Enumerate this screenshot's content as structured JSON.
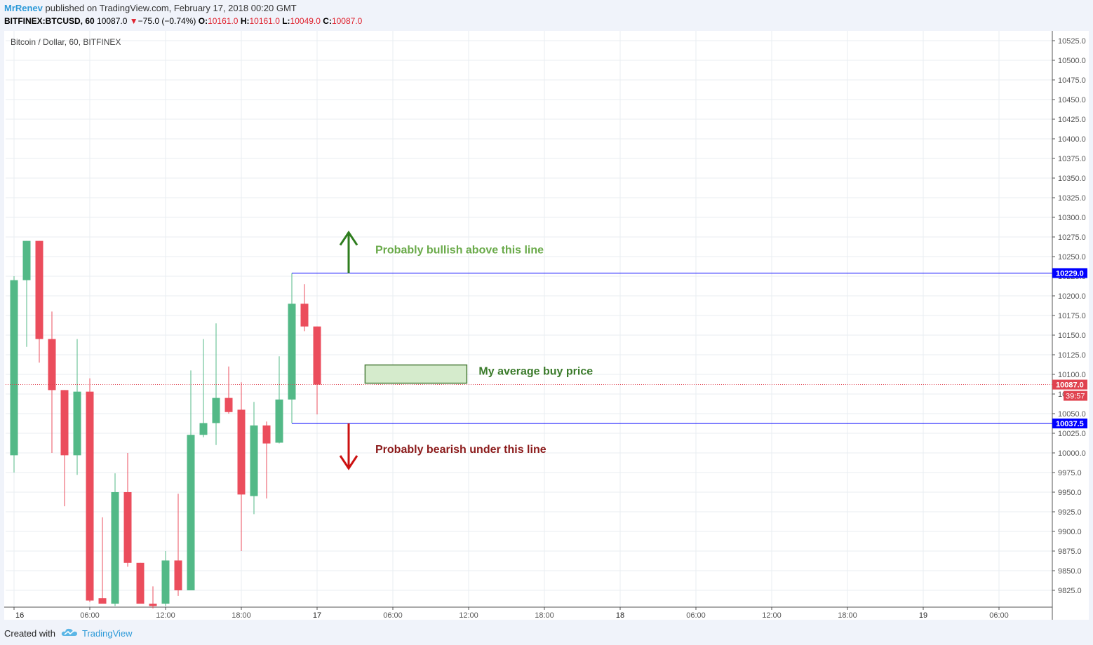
{
  "header": {
    "author": "MrRenev",
    "published": "published on TradingView.com, February 17, 2018 00:20 GMT",
    "symbol": "BITFINEX:BTCUSD, 60",
    "last": "10087.0",
    "change": "−75.0 (−0.74%)",
    "o_label": "O:",
    "o": "10161.0",
    "h_label": "H:",
    "h": "10161.0",
    "l_label": "L:",
    "l": "10049.0",
    "c_label": "C:",
    "c": "10087.0"
  },
  "chart_data": {
    "type": "candlestick",
    "title": "Bitcoin / Dollar, 60, BITFINEX",
    "x_ticks": [
      "16",
      "06:00",
      "12:00",
      "18:00",
      "17",
      "06:00",
      "12:00",
      "18:00",
      "18",
      "06:00",
      "12:00",
      "18:00",
      "19",
      "06:00"
    ],
    "y_ticks": [
      "10525.0",
      "10500.0",
      "10475.0",
      "10450.0",
      "10425.0",
      "10400.0",
      "10375.0",
      "10350.0",
      "10325.0",
      "10300.0",
      "10275.0",
      "10250.0",
      "10225.0",
      "10200.0",
      "10175.0",
      "10150.0",
      "10125.0",
      "10100.0",
      "10075.0",
      "10050.0",
      "10025.0",
      "10000.0",
      "9975.0",
      "9950.0",
      "9925.0",
      "9900.0",
      "9875.0",
      "9850.0",
      "9825.0"
    ],
    "ylim": [
      9810,
      10535
    ],
    "candles": [
      {
        "o": 9997,
        "h": 10225,
        "l": 9975,
        "c": 10220
      },
      {
        "o": 10220,
        "h": 10270,
        "l": 10135,
        "c": 10270
      },
      {
        "o": 10270,
        "h": 10270,
        "l": 10115,
        "c": 10145
      },
      {
        "o": 10145,
        "h": 10180,
        "l": 10000,
        "c": 10080
      },
      {
        "o": 10080,
        "h": 10080,
        "l": 9932,
        "c": 9997
      },
      {
        "o": 9997,
        "h": 10145,
        "l": 9972,
        "c": 10078
      },
      {
        "o": 10078,
        "h": 10095,
        "l": 9810,
        "c": 9812
      },
      {
        "o": 9815,
        "h": 9918,
        "l": 9810,
        "c": 9808
      },
      {
        "o": 9808,
        "h": 9974,
        "l": 9805,
        "c": 9950
      },
      {
        "o": 9950,
        "h": 10000,
        "l": 9855,
        "c": 9860
      },
      {
        "o": 9860,
        "h": 9860,
        "l": 9808,
        "c": 9808
      },
      {
        "o": 9808,
        "h": 9830,
        "l": 9802,
        "c": 9805
      },
      {
        "o": 9808,
        "h": 9875,
        "l": 9805,
        "c": 9863
      },
      {
        "o": 9863,
        "h": 9948,
        "l": 9818,
        "c": 9825
      },
      {
        "o": 9825,
        "h": 10105,
        "l": 9825,
        "c": 10023
      },
      {
        "o": 10023,
        "h": 10145,
        "l": 10020,
        "c": 10038
      },
      {
        "o": 10038,
        "h": 10165,
        "l": 10010,
        "c": 10070
      },
      {
        "o": 10070,
        "h": 10110,
        "l": 10050,
        "c": 10052
      },
      {
        "o": 10055,
        "h": 10090,
        "l": 9875,
        "c": 9947
      },
      {
        "o": 9945,
        "h": 10065,
        "l": 9922,
        "c": 10035
      },
      {
        "o": 10035,
        "h": 10040,
        "l": 9942,
        "c": 10012
      },
      {
        "o": 10013,
        "h": 10123,
        "l": 10012,
        "c": 10068
      },
      {
        "o": 10068,
        "h": 10229,
        "l": 10038,
        "c": 10190
      },
      {
        "o": 10190,
        "h": 10215,
        "l": 10155,
        "c": 10161
      },
      {
        "o": 10161,
        "h": 10161,
        "l": 10049,
        "c": 10087
      }
    ],
    "current_price": {
      "value": 10087.0,
      "label": "10087.0",
      "countdown": "39:57"
    },
    "levels": [
      {
        "value": 10229.0,
        "label": "10229.0"
      },
      {
        "value": 10037.5,
        "label": "10037.5"
      }
    ],
    "annotations": {
      "bullish": "Probably bullish above this line",
      "bearish": "Probably bearish under this line",
      "avg_buy": "My average buy price"
    },
    "colors": {
      "up": "#53b987",
      "down": "#eb4d5c",
      "level": "#0000ff",
      "bull": "#6aaa4a",
      "bull_arrow": "#2e7d1e",
      "bear": "#8b1a1a",
      "bear_arrow": "#cc1111",
      "price_tag": "#e0424f",
      "box_fill": "#d5ebcc",
      "box_stroke": "#4a7c3a"
    }
  },
  "footer": {
    "created_with": "Created with",
    "brand": "TradingView"
  }
}
